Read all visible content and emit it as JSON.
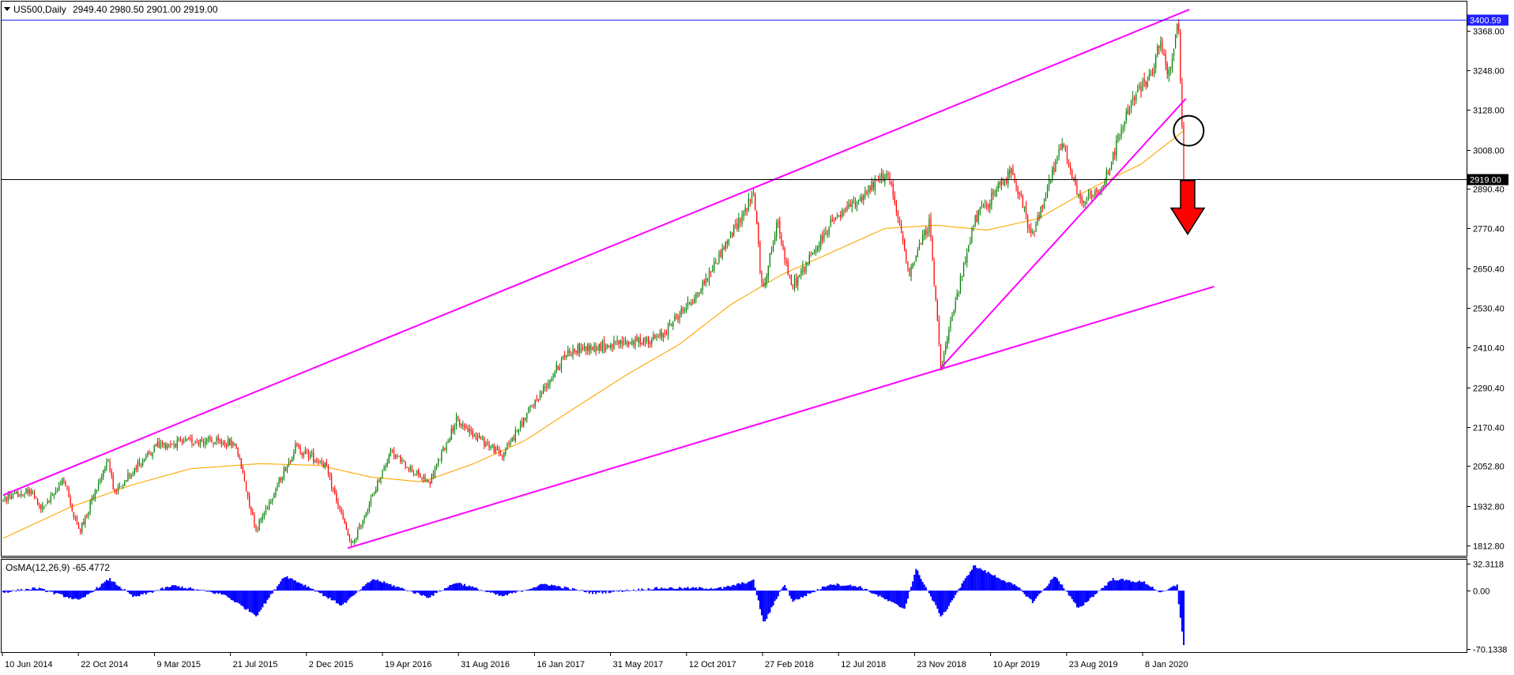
{
  "header": {
    "symbol": "US500,Daily",
    "ohlc": "2949.40 2980.50 2901.00 2919.00"
  },
  "osma": {
    "label": "OsMA(12,26,9) -65.4772",
    "ticks": [
      32.3118,
      0.0,
      -70.1338
    ],
    "tick_labels": [
      "32.3118",
      "0.00",
      "-70.1338"
    ]
  },
  "price_axis": {
    "ticks": [
      3368.0,
      3248.0,
      3128.0,
      3008.0,
      2890.4,
      2770.4,
      2650.4,
      2530.4,
      2410.4,
      2290.4,
      2170.4,
      2052.8,
      1932.8,
      1812.8
    ],
    "tick_labels": [
      "3368.00",
      "3248.00",
      "3128.00",
      "3008.00",
      "2890.40",
      "2770.40",
      "2650.40",
      "2530.40",
      "2410.40",
      "2290.40",
      "2170.40",
      "2052.80",
      "1932.80",
      "1812.80"
    ],
    "ylim": [
      1782.0,
      3455.0
    ]
  },
  "horizontal_lines": [
    {
      "value": 3400.59,
      "label": "3400.59",
      "color": "#2020ff",
      "label_bg": "#2020ff",
      "label_fg": "#ffffff"
    },
    {
      "value": 2919.0,
      "label": "2919.00",
      "color": "#000000",
      "label_bg": "#000000",
      "label_fg": "#ffffff"
    }
  ],
  "time_axis": {
    "labels": [
      "10 Jun 2014",
      "22 Oct 2014",
      "9 Mar 2015",
      "21 Jul 2015",
      "2 Dec 2015",
      "19 Apr 2016",
      "31 Aug 2016",
      "16 Jan 2017",
      "31 May 2017",
      "12 Oct 2017",
      "27 Feb 2018",
      "12 Jul 2018",
      "23 Nov 2018",
      "10 Apr 2019",
      "23 Aug 2019",
      "8 Jan 2020"
    ]
  },
  "colors": {
    "bull": "#008000",
    "bear": "#ff0000",
    "ma": "#ffa500",
    "trendline": "#ff00ff",
    "osma": "#0000ff",
    "arrow": "#ff0000"
  },
  "chart_data": {
    "type": "candlestick",
    "title": "US500,Daily",
    "x_range": [
      "2014-06-02",
      "2020-02-28"
    ],
    "ylim": [
      1782.0,
      3455.0
    ],
    "price_path": [
      [
        "2014-06-02",
        1950
      ],
      [
        "2014-07-20",
        1985
      ],
      [
        "2014-08-07",
        1920
      ],
      [
        "2014-09-18",
        2010
      ],
      [
        "2014-10-15",
        1850
      ],
      [
        "2014-12-05",
        2075
      ],
      [
        "2014-12-16",
        1975
      ],
      [
        "2015-03-01",
        2115
      ],
      [
        "2015-05-20",
        2130
      ],
      [
        "2015-07-20",
        2120
      ],
      [
        "2015-08-25",
        1860
      ],
      [
        "2015-11-03",
        2110
      ],
      [
        "2015-12-25",
        2060
      ],
      [
        "2016-02-11",
        1810
      ],
      [
        "2016-04-20",
        2095
      ],
      [
        "2016-06-27",
        2000
      ],
      [
        "2016-08-15",
        2190
      ],
      [
        "2016-11-04",
        2085
      ],
      [
        "2016-12-30",
        2240
      ],
      [
        "2017-03-01",
        2400
      ],
      [
        "2017-08-10",
        2440
      ],
      [
        "2017-10-20",
        2580
      ],
      [
        "2018-01-26",
        2875
      ],
      [
        "2018-02-09",
        2580
      ],
      [
        "2018-03-09",
        2790
      ],
      [
        "2018-04-02",
        2590
      ],
      [
        "2018-06-12",
        2785
      ],
      [
        "2018-07-25",
        2850
      ],
      [
        "2018-09-20",
        2940
      ],
      [
        "2018-10-29",
        2640
      ],
      [
        "2018-12-03",
        2790
      ],
      [
        "2018-12-24",
        2350
      ],
      [
        "2019-02-20",
        2790
      ],
      [
        "2019-04-30",
        2950
      ],
      [
        "2019-06-03",
        2740
      ],
      [
        "2019-07-26",
        3025
      ],
      [
        "2019-08-27",
        2850
      ],
      [
        "2019-10-03",
        2880
      ],
      [
        "2019-11-27",
        3155
      ],
      [
        "2019-12-31",
        3230
      ],
      [
        "2020-01-17",
        3330
      ],
      [
        "2020-01-31",
        3225
      ],
      [
        "2020-02-19",
        3394
      ],
      [
        "2020-02-28",
        2919
      ]
    ],
    "moving_average": [
      [
        "2014-06-02",
        1835
      ],
      [
        "2014-10-01",
        1930
      ],
      [
        "2015-01-15",
        1995
      ],
      [
        "2015-05-01",
        2045
      ],
      [
        "2015-09-01",
        2060
      ],
      [
        "2015-12-15",
        2055
      ],
      [
        "2016-03-15",
        2020
      ],
      [
        "2016-06-15",
        2005
      ],
      [
        "2016-09-15",
        2060
      ],
      [
        "2016-12-15",
        2130
      ],
      [
        "2017-03-15",
        2230
      ],
      [
        "2017-06-15",
        2330
      ],
      [
        "2017-09-15",
        2420
      ],
      [
        "2017-12-15",
        2540
      ],
      [
        "2018-03-15",
        2630
      ],
      [
        "2018-06-15",
        2700
      ],
      [
        "2018-09-15",
        2770
      ],
      [
        "2018-12-15",
        2780
      ],
      [
        "2019-03-15",
        2765
      ],
      [
        "2019-06-15",
        2800
      ],
      [
        "2019-09-15",
        2890
      ],
      [
        "2019-12-15",
        2965
      ],
      [
        "2020-02-28",
        3065
      ]
    ],
    "trendlines": [
      {
        "from": [
          "2014-06-02",
          1965
        ],
        "to": [
          "2020-03-09",
          3431
        ]
      },
      {
        "from": [
          "2016-02-04",
          1805
        ],
        "to": [
          "2020-04-22",
          2595
        ]
      },
      {
        "from": [
          "2018-12-24",
          2350
        ],
        "to": [
          "2020-03-03",
          3162
        ]
      }
    ],
    "annotations": [
      {
        "type": "circle",
        "at": [
          "2020-02-20",
          3065
        ]
      },
      {
        "type": "down-arrow",
        "at": [
          "2020-03-06",
          2760
        ]
      }
    ],
    "osma_series": [
      [
        "2014-06-02",
        -2
      ],
      [
        "2014-08-01",
        3
      ],
      [
        "2014-10-16",
        -12
      ],
      [
        "2014-12-08",
        14
      ],
      [
        "2015-01-20",
        -8
      ],
      [
        "2015-04-01",
        6
      ],
      [
        "2015-06-30",
        -5
      ],
      [
        "2015-08-26",
        -30
      ],
      [
        "2015-10-15",
        18
      ],
      [
        "2015-12-01",
        3
      ],
      [
        "2016-01-25",
        -18
      ],
      [
        "2016-03-20",
        14
      ],
      [
        "2016-06-27",
        -8
      ],
      [
        "2016-08-15",
        10
      ],
      [
        "2016-11-04",
        -7
      ],
      [
        "2017-01-20",
        8
      ],
      [
        "2017-04-15",
        -3
      ],
      [
        "2017-08-10",
        3
      ],
      [
        "2017-12-01",
        3
      ],
      [
        "2018-01-25",
        12
      ],
      [
        "2018-02-12",
        -40
      ],
      [
        "2018-03-20",
        8
      ],
      [
        "2018-04-05",
        -13
      ],
      [
        "2018-06-10",
        8
      ],
      [
        "2018-08-01",
        5
      ],
      [
        "2018-10-20",
        -22
      ],
      [
        "2018-11-10",
        26
      ],
      [
        "2018-12-25",
        -32
      ],
      [
        "2019-02-20",
        30
      ],
      [
        "2019-05-10",
        4
      ],
      [
        "2019-06-05",
        -14
      ],
      [
        "2019-07-15",
        18
      ],
      [
        "2019-08-25",
        -22
      ],
      [
        "2019-10-25",
        14
      ],
      [
        "2019-12-20",
        10
      ],
      [
        "2020-01-20",
        -3
      ],
      [
        "2020-02-19",
        8
      ],
      [
        "2020-02-28",
        -65.4772
      ]
    ],
    "osma_ylim": [
      -70.1338,
      32.3118
    ]
  }
}
